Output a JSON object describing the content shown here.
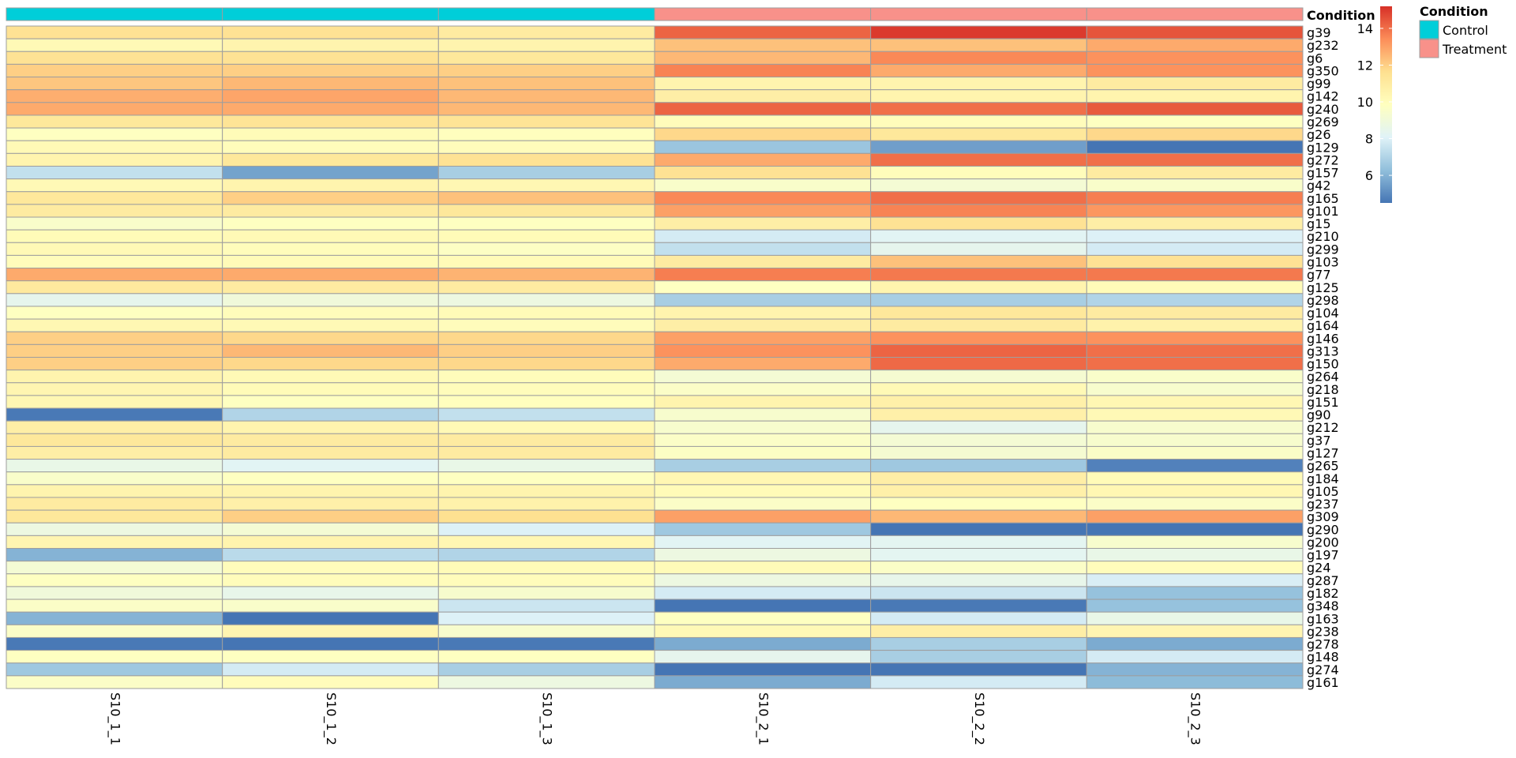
{
  "chart_data": {
    "type": "heatmap",
    "columns": [
      "S10_1_1",
      "S10_1_2",
      "S10_1_3",
      "S10_2_1",
      "S10_2_2",
      "S10_2_3"
    ],
    "rows": [
      "g39",
      "g232",
      "g6",
      "g350",
      "g99",
      "g142",
      "g240",
      "g269",
      "g26",
      "g129",
      "g272",
      "g157",
      "g42",
      "g165",
      "g101",
      "g15",
      "g210",
      "g299",
      "g103",
      "g77",
      "g125",
      "g298",
      "g104",
      "g164",
      "g146",
      "g313",
      "g150",
      "g264",
      "g218",
      "g151",
      "g90",
      "g212",
      "g37",
      "g127",
      "g265",
      "g184",
      "g105",
      "g237",
      "g309",
      "g290",
      "g200",
      "g197",
      "g24",
      "g287",
      "g182",
      "g348",
      "g163",
      "g238",
      "g278",
      "g148",
      "g274",
      "g161"
    ],
    "values": [
      [
        11.5,
        11.5,
        11.0,
        14.2,
        15.0,
        14.5
      ],
      [
        10.2,
        10.5,
        10.5,
        12.3,
        12.3,
        12.8
      ],
      [
        11.5,
        11.5,
        11.2,
        12.5,
        13.5,
        13.3
      ],
      [
        12.0,
        12.0,
        12.0,
        13.6,
        12.8,
        13.3
      ],
      [
        12.2,
        12.5,
        12.3,
        10.5,
        10.5,
        11.0
      ],
      [
        12.7,
        12.9,
        12.5,
        10.8,
        10.5,
        10.5
      ],
      [
        12.8,
        12.8,
        12.5,
        14.2,
        14.0,
        14.4
      ],
      [
        11.2,
        11.4,
        11.4,
        10.0,
        10.0,
        9.8
      ],
      [
        9.8,
        10.1,
        9.9,
        11.8,
        11.2,
        11.8
      ],
      [
        10.2,
        10.0,
        10.0,
        6.5,
        5.5,
        4.5
      ],
      [
        10.5,
        11.2,
        11.5,
        12.8,
        14.0,
        14.0
      ],
      [
        7.4,
        5.6,
        6.8,
        11.5,
        10.0,
        11.0
      ],
      [
        10.2,
        10.5,
        10.3,
        9.5,
        9.2,
        9.5
      ],
      [
        11.2,
        12.0,
        12.3,
        13.5,
        14.0,
        13.7
      ],
      [
        11.0,
        11.0,
        11.2,
        13.0,
        13.6,
        13.2
      ],
      [
        9.5,
        9.8,
        9.8,
        10.8,
        11.5,
        10.8
      ],
      [
        10.1,
        10.2,
        10.1,
        7.8,
        8.2,
        8.0
      ],
      [
        10.2,
        10.0,
        9.7,
        7.4,
        8.4,
        7.8
      ],
      [
        10.0,
        10.1,
        10.1,
        11.0,
        12.3,
        11.5
      ],
      [
        12.8,
        12.8,
        12.6,
        13.7,
        13.8,
        13.8
      ],
      [
        11.1,
        11.0,
        11.0,
        9.8,
        10.5,
        10.1
      ],
      [
        8.4,
        9.0,
        8.8,
        6.8,
        6.8,
        7.0
      ],
      [
        9.8,
        10.0,
        10.1,
        10.5,
        11.2,
        11.0
      ],
      [
        10.3,
        10.2,
        10.0,
        10.8,
        11.0,
        10.6
      ],
      [
        12.0,
        11.8,
        11.8,
        13.0,
        13.3,
        13.3
      ],
      [
        12.0,
        12.5,
        12.0,
        13.3,
        14.2,
        14.0
      ],
      [
        12.0,
        11.8,
        11.8,
        12.8,
        14.1,
        14.0
      ],
      [
        10.5,
        10.2,
        10.0,
        9.2,
        9.3,
        9.5
      ],
      [
        10.4,
        10.1,
        10.0,
        9.6,
        10.2,
        9.4
      ],
      [
        10.3,
        9.8,
        9.9,
        10.5,
        10.7,
        10.3
      ],
      [
        4.6,
        7.0,
        7.4,
        9.4,
        10.7,
        10.2
      ],
      [
        10.8,
        10.5,
        10.2,
        9.4,
        8.4,
        9.4
      ],
      [
        11.2,
        11.0,
        11.0,
        9.6,
        9.2,
        9.4
      ],
      [
        10.8,
        11.0,
        11.0,
        9.7,
        9.3,
        9.6
      ],
      [
        8.6,
        8.2,
        8.6,
        6.8,
        6.6,
        4.8
      ],
      [
        9.5,
        9.8,
        9.8,
        10.3,
        10.8,
        10.1
      ],
      [
        10.5,
        10.5,
        10.5,
        10.1,
        10.7,
        10.3
      ],
      [
        11.0,
        10.7,
        10.6,
        9.6,
        9.8,
        9.6
      ],
      [
        11.2,
        12.0,
        11.6,
        13.0,
        12.5,
        13.0
      ],
      [
        8.8,
        9.2,
        8.0,
        6.6,
        4.5,
        4.5
      ],
      [
        10.4,
        10.5,
        10.3,
        8.2,
        8.3,
        9.4
      ],
      [
        6.0,
        7.2,
        7.0,
        8.8,
        8.3,
        8.6
      ],
      [
        9.2,
        10.0,
        10.1,
        10.1,
        9.6,
        10.0
      ],
      [
        9.8,
        10.0,
        10.0,
        8.8,
        8.5,
        7.9
      ],
      [
        9.0,
        8.5,
        9.4,
        7.8,
        7.6,
        6.4
      ],
      [
        9.6,
        9.5,
        7.6,
        4.5,
        4.6,
        6.4
      ],
      [
        6.0,
        4.5,
        8.0,
        9.8,
        7.8,
        8.6
      ],
      [
        9.6,
        10.4,
        9.4,
        10.2,
        10.8,
        10.4
      ],
      [
        4.6,
        4.5,
        4.6,
        5.8,
        6.8,
        5.8
      ],
      [
        9.8,
        9.8,
        9.8,
        8.4,
        6.8,
        7.8
      ],
      [
        6.6,
        7.8,
        6.8,
        4.5,
        4.5,
        6.0
      ],
      [
        9.6,
        10.0,
        8.8,
        5.8,
        7.8,
        6.2
      ]
    ],
    "annotation": {
      "title": "Condition",
      "groups": [
        "Control",
        "Control",
        "Control",
        "Treatment",
        "Treatment",
        "Treatment"
      ],
      "levels": [
        "Control",
        "Treatment"
      ],
      "colors": {
        "Control": "#00CED9",
        "Treatment": "#F8918A"
      }
    },
    "color_scale": {
      "ticks": [
        6,
        8,
        10,
        12,
        14
      ],
      "min": 4.5,
      "max": 15.2,
      "palette": [
        "#4575B4",
        "#91BFDB",
        "#E0F3F8",
        "#FFFFBF",
        "#FEE090",
        "#FC8D59",
        "#D73027"
      ]
    }
  }
}
